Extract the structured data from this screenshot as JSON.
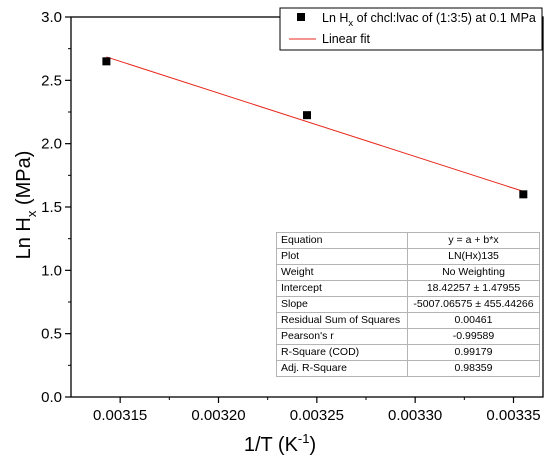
{
  "chart_data": {
    "type": "scatter",
    "xlabel": "1/T (K",
    "xlabel_sup": "-1",
    "xlabel_end": ")",
    "ylabel": "Ln H",
    "ylabel_sub": "x",
    "ylabel_end": " (MPa)",
    "xlim": [
      0.003125,
      0.003365
    ],
    "ylim": [
      0.0,
      3.0
    ],
    "xticks": [
      0.00315,
      0.0032,
      0.00325,
      0.0033,
      0.00335
    ],
    "xtick_labels": [
      "0.00315",
      "0.00320",
      "0.00325",
      "0.00330",
      "0.00335"
    ],
    "yticks": [
      0.0,
      0.5,
      1.0,
      1.5,
      2.0,
      2.5,
      3.0
    ],
    "ytick_labels": [
      "0.0",
      "0.5",
      "1.0",
      "1.5",
      "2.0",
      "2.5",
      "3.0"
    ],
    "series": [
      {
        "name": "Ln Hx of chcl:lvac of (1:3:5) at 0.1 MPa",
        "type": "scatter",
        "marker": "square",
        "color": "#000000",
        "x": [
          0.003143,
          0.003245,
          0.003355
        ],
        "y": [
          2.65,
          2.225,
          1.6
        ]
      },
      {
        "name": "Linear fit",
        "type": "line",
        "color": "#e8281c",
        "x": [
          0.003143,
          0.003355
        ],
        "y": [
          2.6847,
          1.6231
        ]
      }
    ],
    "legend": {
      "position": "top-right",
      "entries": [
        {
          "pre": "Ln H",
          "sub": "x",
          "post": " of chcl:lvac of (1:3:5) at 0.1 MPa"
        },
        {
          "text": "Linear fit"
        }
      ]
    },
    "stats_table": [
      {
        "label": "Equation",
        "value": "y = a + b*x"
      },
      {
        "label": "Plot",
        "value": "LN(Hx)135"
      },
      {
        "label": "Weight",
        "value": "No Weighting"
      },
      {
        "label": "Intercept",
        "value": "18.42257 ± 1.47955"
      },
      {
        "label": "Slope",
        "value": "-5007.06575 ± 455.44266"
      },
      {
        "label": "Residual Sum of Squares",
        "value": "0.00461"
      },
      {
        "label": "Pearson's r",
        "value": "-0.99589"
      },
      {
        "label": "R-Square (COD)",
        "value": "0.99179"
      },
      {
        "label": "Adj. R-Square",
        "value": "0.98359"
      }
    ]
  }
}
